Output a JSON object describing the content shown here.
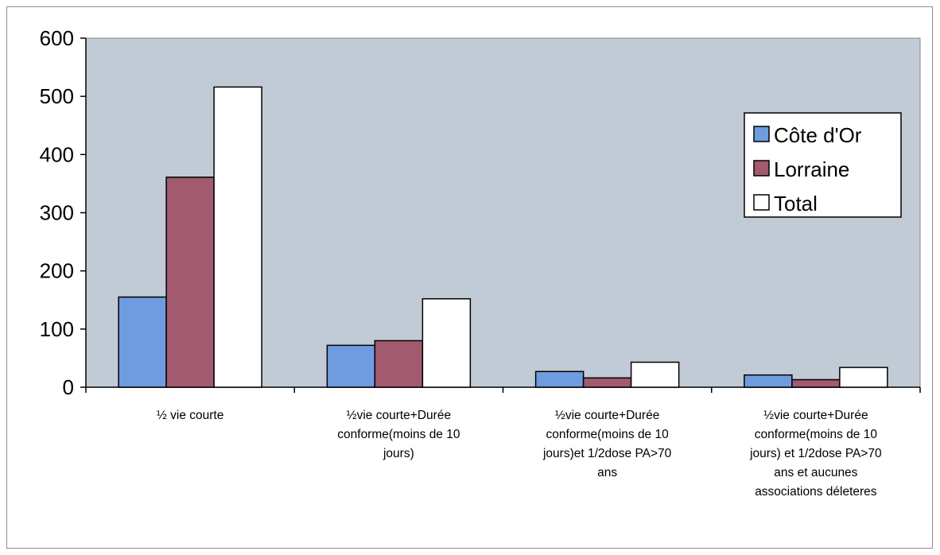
{
  "chart_data": {
    "type": "bar",
    "categories": [
      "½ vie courte",
      "½vie courte+Durée conforme(moins de 10 jours)",
      "½vie courte+Durée conforme(moins de 10 jours)et 1/2dose PA>70 ans",
      "½vie courte+Durée conforme(moins de 10 jours) et 1/2dose PA>70 ans et aucunes associations déleteres"
    ],
    "category_lines": [
      [
        "½ vie courte"
      ],
      [
        "½vie courte+Durée",
        "conforme(moins de 10",
        "jours)"
      ],
      [
        "½vie courte+Durée",
        "conforme(moins de 10",
        "jours)et 1/2dose PA>70",
        "ans"
      ],
      [
        "½vie courte+Durée",
        "conforme(moins de 10",
        "jours) et 1/2dose PA>70",
        "ans et aucunes",
        "associations déleteres"
      ]
    ],
    "series": [
      {
        "name": "Côte d'Or",
        "values": [
          155,
          72,
          27,
          21
        ],
        "color": "#6f9be0"
      },
      {
        "name": "Lorraine",
        "values": [
          361,
          80,
          16,
          13
        ],
        "color": "#a25a6e"
      },
      {
        "name": "Total",
        "values": [
          516,
          152,
          43,
          34
        ],
        "color": "#ffffff"
      }
    ],
    "title": "",
    "xlabel": "",
    "ylabel": "",
    "ylim": [
      0,
      600
    ],
    "yticks": [
      0,
      100,
      200,
      300,
      400,
      500,
      600
    ],
    "grid": false,
    "legend_position": "top-right",
    "plot_background": "#c0cbd6"
  }
}
